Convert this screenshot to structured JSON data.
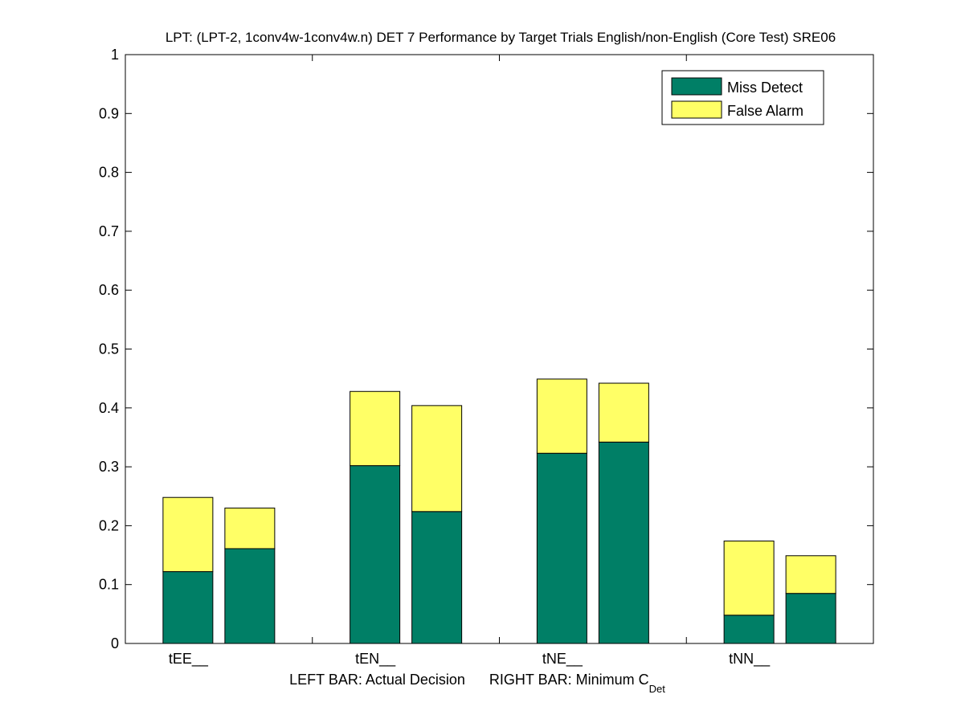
{
  "chart_data": {
    "type": "bar",
    "stacked": true,
    "title": "LPT: (LPT-2, 1conv4w-1conv4w.n) DET 7 Performance by Target Trials English/non-English (Core Test) SRE06",
    "xlabel_prefix": "LEFT BAR: Actual Decision      RIGHT BAR: Minimum C",
    "xlabel_subscript": "Det",
    "ylabel": "",
    "ylim": [
      0,
      1
    ],
    "yticks": [
      0,
      0.1,
      0.2,
      0.3,
      0.4,
      0.5,
      0.6,
      0.7,
      0.8,
      0.9,
      1
    ],
    "ytick_labels": [
      "0",
      "0.1",
      "0.2",
      "0.3",
      "0.4",
      "0.5",
      "0.6",
      "0.7",
      "0.8",
      "0.9",
      "1"
    ],
    "categories": [
      "tEE__",
      "tEN__",
      "tNE__",
      "tNN__"
    ],
    "bars_per_category": [
      "Actual Decision",
      "Minimum C_Det"
    ],
    "series": [
      {
        "name": "Miss Detect",
        "color": "#007f66",
        "values": [
          [
            0.122,
            0.161
          ],
          [
            0.302,
            0.224
          ],
          [
            0.323,
            0.342
          ],
          [
            0.048,
            0.085
          ]
        ]
      },
      {
        "name": "False Alarm",
        "color": "#ffff66",
        "values": [
          [
            0.126,
            0.069
          ],
          [
            0.126,
            0.18
          ],
          [
            0.126,
            0.1
          ],
          [
            0.126,
            0.064
          ]
        ]
      }
    ],
    "legend_position": "top-right",
    "grid": false
  }
}
